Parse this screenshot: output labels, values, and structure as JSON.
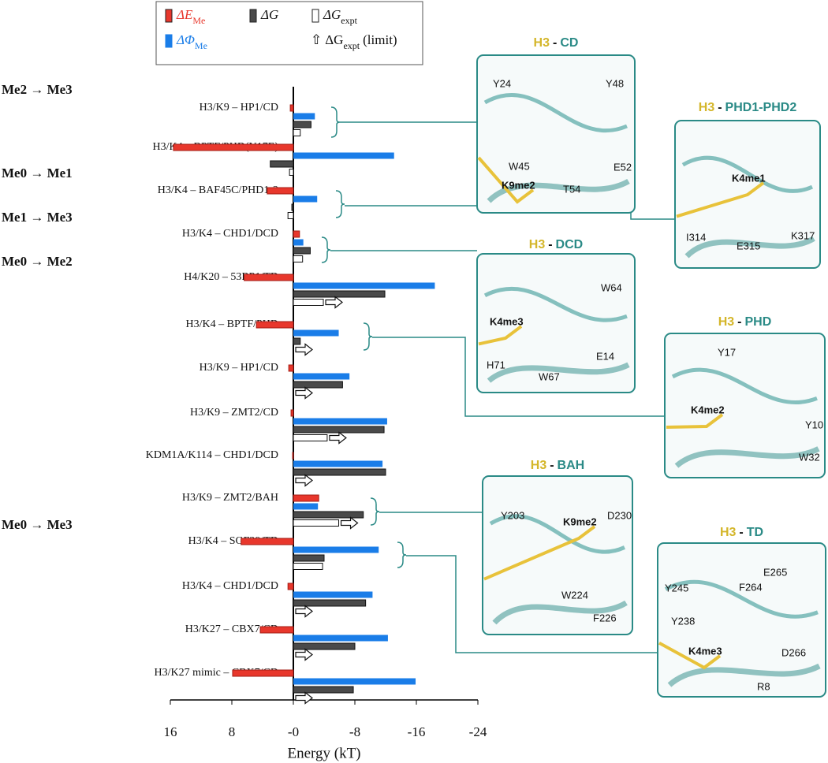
{
  "chart_data": {
    "type": "bar",
    "orientation": "horizontal",
    "xlabel": "Energy (kT)",
    "xlim": [
      16,
      -24
    ],
    "xticks": [
      16,
      8,
      {
        "value": 0,
        "label": "-0"
      },
      -8,
      -16,
      -24
    ],
    "groups": [
      {
        "label": "Me2 → Me3",
        "categories": [
          "H3/K9 – HP1/CD",
          "H3/K4 – BPTF/PHD(Y17E)"
        ]
      },
      {
        "label": "Me0 → Me1",
        "categories": [
          "H3/K4 – BAF45C/PHD1-2"
        ]
      },
      {
        "label": "Me1 → Me3",
        "categories": [
          "H3/K4 – CHD1/DCD"
        ]
      },
      {
        "label": "Me0 → Me2",
        "categories": [
          "H4/K20 – 53BP1/TD",
          "H3/K4 – BPTF/PHD",
          "H3/K9 – HP1/CD",
          "H3/K9 – ZMT2/CD",
          "KDM1A/K114 – CHD1/DCD",
          "H3/K9 – ZMT2/BAH"
        ]
      },
      {
        "label": "Me0 → Me3",
        "categories": [
          "H3/K4 – SGF29/TD",
          "H3/K4 – CHD1/DCD",
          "H3/K27 – CBX7/CD",
          "H3/K27 mimic – CBX7/CD"
        ]
      }
    ],
    "series": [
      {
        "name": "ΔE",
        "sub": "Me",
        "color": "#e8372c",
        "values": [
          0.4,
          15.6,
          3.4,
          -0.8,
          6.4,
          4.8,
          0.6,
          0.3,
          0.1,
          -3.3,
          6.8,
          0.7,
          4.3,
          7.9
        ]
      },
      {
        "name": "ΔΦ",
        "sub": "Me",
        "color": "#1a7de8",
        "values": [
          -2.8,
          -13.1,
          -3.1,
          -1.3,
          -18.4,
          -5.9,
          -7.3,
          -12.2,
          -11.6,
          -3.2,
          -11.1,
          -10.3,
          -12.3,
          -15.9
        ]
      },
      {
        "name": "ΔG",
        "color": "#4a4a4a",
        "values": [
          -2.3,
          3.0,
          0.2,
          -2.2,
          -11.9,
          -0.9,
          -6.4,
          -11.8,
          -12.0,
          -9.1,
          -4.0,
          -9.4,
          -8.0,
          -7.8
        ]
      },
      {
        "name": "ΔG",
        "sub": "expt",
        "color": "#ffffff",
        "values": [
          -0.9,
          0.5,
          0.7,
          -1.2,
          -3.9,
          null,
          null,
          -4.4,
          null,
          -5.9,
          -3.8,
          null,
          null,
          null
        ],
        "limit": [
          false,
          false,
          false,
          false,
          true,
          true,
          true,
          true,
          true,
          true,
          false,
          true,
          true,
          true
        ]
      }
    ],
    "limit_legend": {
      "symbol": "⇧",
      "name": "ΔG",
      "sub": "expt",
      "suffix": "(limit)"
    },
    "insets": [
      {
        "prefix": "H3",
        "sep": "-",
        "name": "CD",
        "residues": [
          "Y24",
          "Y48",
          "W45",
          "E52",
          "T54"
        ],
        "ligand": "K9me2"
      },
      {
        "prefix": "H3",
        "sep": "-",
        "name": "PHD1-PHD2",
        "residues": [
          "I314",
          "K317",
          "E315"
        ],
        "ligand": "K4me1"
      },
      {
        "prefix": "H3",
        "sep": "-",
        "name": "DCD",
        "residues": [
          "W64",
          "E14",
          "H71",
          "W67"
        ],
        "ligand": "K4me3"
      },
      {
        "prefix": "H3",
        "sep": "-",
        "name": "PHD",
        "residues": [
          "Y17",
          "Y10",
          "W32"
        ],
        "ligand": "K4me2"
      },
      {
        "prefix": "H3",
        "sep": "-",
        "name": "BAH",
        "residues": [
          "Y203",
          "D230",
          "W224",
          "F226"
        ],
        "ligand": "K9me2"
      },
      {
        "prefix": "H3",
        "sep": "-",
        "name": "TD",
        "residues": [
          "E265",
          "F264",
          "Y245",
          "Y238",
          "D266",
          "R8"
        ],
        "ligand": "K4me3"
      }
    ]
  }
}
